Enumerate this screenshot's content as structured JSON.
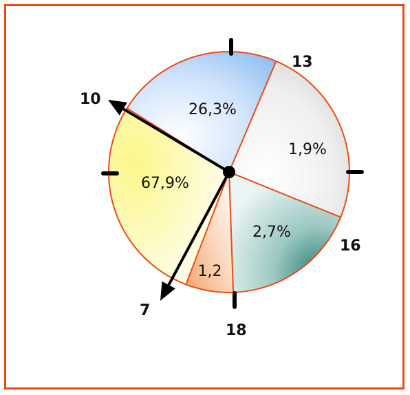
{
  "diagram": {
    "slices": [
      {
        "name": "wedge-blue",
        "label": "26,3%",
        "from_hour": 10,
        "to_hour": 13
      },
      {
        "name": "wedge-gray",
        "label": "1,9%",
        "from_hour": 13,
        "to_hour": 16
      },
      {
        "name": "wedge-teal",
        "label": "2,7%",
        "from_hour": 16,
        "to_hour": 18
      },
      {
        "name": "wedge-orange",
        "label": "1,2",
        "from_hour": 18,
        "to_hour": 19
      },
      {
        "name": "wedge-yellow",
        "label": "67,9%",
        "from_hour": 19,
        "to_hour": 10
      }
    ],
    "hour_labels": {
      "h10": "10",
      "h13": "13",
      "h16": "16",
      "h18": "18",
      "h7": "7"
    },
    "colors": {
      "frame": "#ee4a14",
      "divider": "#ee4a14",
      "hand": "#000000"
    }
  }
}
